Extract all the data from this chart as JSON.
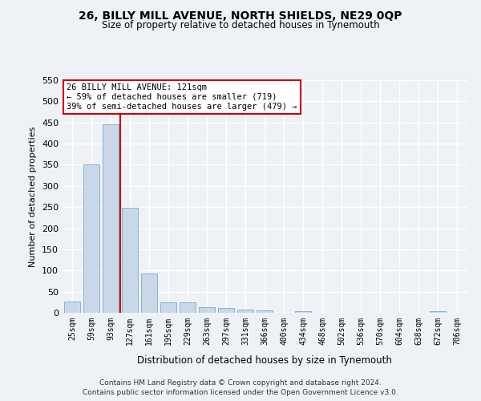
{
  "title": "26, BILLY MILL AVENUE, NORTH SHIELDS, NE29 0QP",
  "subtitle": "Size of property relative to detached houses in Tynemouth",
  "xlabel": "Distribution of detached houses by size in Tynemouth",
  "ylabel": "Number of detached properties",
  "bar_color": "#c8d8e8",
  "bar_edge_color": "#7aaac8",
  "categories": [
    "25sqm",
    "59sqm",
    "93sqm",
    "127sqm",
    "161sqm",
    "195sqm",
    "229sqm",
    "263sqm",
    "297sqm",
    "331sqm",
    "366sqm",
    "400sqm",
    "434sqm",
    "468sqm",
    "502sqm",
    "536sqm",
    "570sqm",
    "604sqm",
    "638sqm",
    "672sqm",
    "706sqm"
  ],
  "values": [
    27,
    350,
    445,
    248,
    93,
    25,
    24,
    13,
    11,
    7,
    5,
    0,
    4,
    0,
    0,
    0,
    0,
    0,
    0,
    4,
    0
  ],
  "ylim": [
    0,
    550
  ],
  "yticks": [
    0,
    50,
    100,
    150,
    200,
    250,
    300,
    350,
    400,
    450,
    500,
    550
  ],
  "vline_x_index": 2.5,
  "annotation_text": "26 BILLY MILL AVENUE: 121sqm\n← 59% of detached houses are smaller (719)\n39% of semi-detached houses are larger (479) →",
  "annotation_box_color": "#ffffff",
  "annotation_box_edge_color": "#cc0000",
  "vline_color": "#cc0000",
  "footer_line1": "Contains HM Land Registry data © Crown copyright and database right 2024.",
  "footer_line2": "Contains public sector information licensed under the Open Government Licence v3.0.",
  "background_color": "#eef2f7",
  "grid_color": "#ffffff"
}
